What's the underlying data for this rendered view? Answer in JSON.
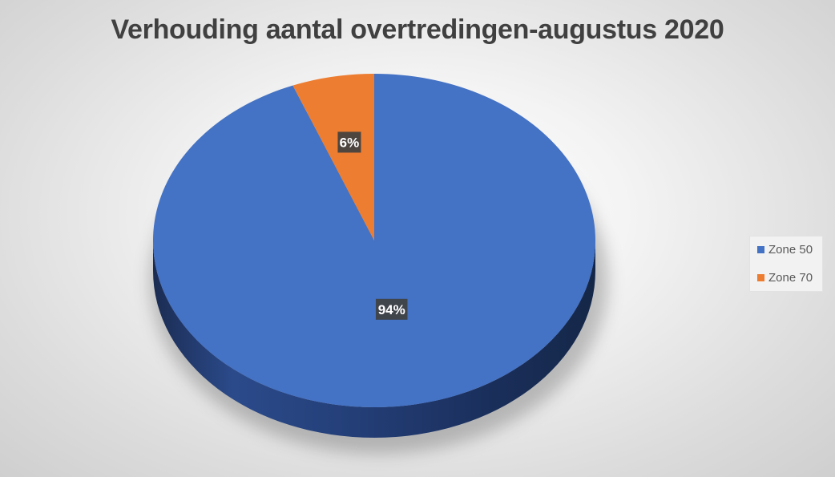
{
  "chart_data": {
    "type": "pie",
    "title": "Verhouding aantal overtredingen-augustus 2020",
    "style": "3d",
    "legend_position": "right",
    "slices": [
      {
        "name": "Zone 50",
        "value": 94,
        "label": "94%",
        "color": "#4472C4"
      },
      {
        "name": "Zone 70",
        "value": 6,
        "label": "6%",
        "color": "#ED7D31"
      }
    ]
  }
}
